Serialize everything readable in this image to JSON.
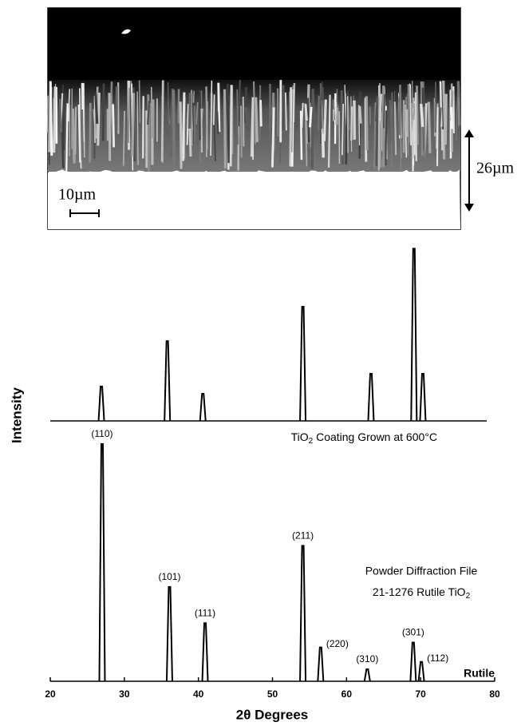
{
  "micrograph": {
    "thickness_label": "26µm",
    "scale_label": "10µm"
  },
  "chart_data": [
    {
      "type": "peaks",
      "series_label_parts": [
        "TiO",
        "2",
        " Coating Grown at 600°C"
      ],
      "color": "#000000",
      "xlim": [
        20,
        80
      ],
      "ylim": [
        0,
        100
      ],
      "x": [
        26.9,
        35.8,
        40.6,
        54.1,
        63.3,
        69.1,
        70.3
      ],
      "values": [
        19,
        44,
        15,
        63,
        26,
        95,
        26
      ]
    },
    {
      "type": "peaks",
      "note_lines": [
        "Powder Diffraction File",
        [
          "21-1276 Rutile TiO",
          "2"
        ]
      ],
      "series_name": "Rutile",
      "color": "#000000",
      "xlabel": "2θ Degrees",
      "ylabel": "Intensity",
      "xlim": [
        20,
        80
      ],
      "ylim": [
        0,
        100
      ],
      "xticks": [
        20,
        30,
        40,
        50,
        60,
        70,
        80
      ],
      "x": [
        27.0,
        36.1,
        40.9,
        54.1,
        56.5,
        62.8,
        69.0,
        70.1
      ],
      "values": [
        98,
        39,
        24,
        56,
        14,
        5,
        16,
        8
      ],
      "peak_labels": [
        "(110)",
        "(101)",
        "(111)",
        "(211)",
        "(220)",
        "(310)",
        "(301)",
        "(112)"
      ]
    }
  ]
}
